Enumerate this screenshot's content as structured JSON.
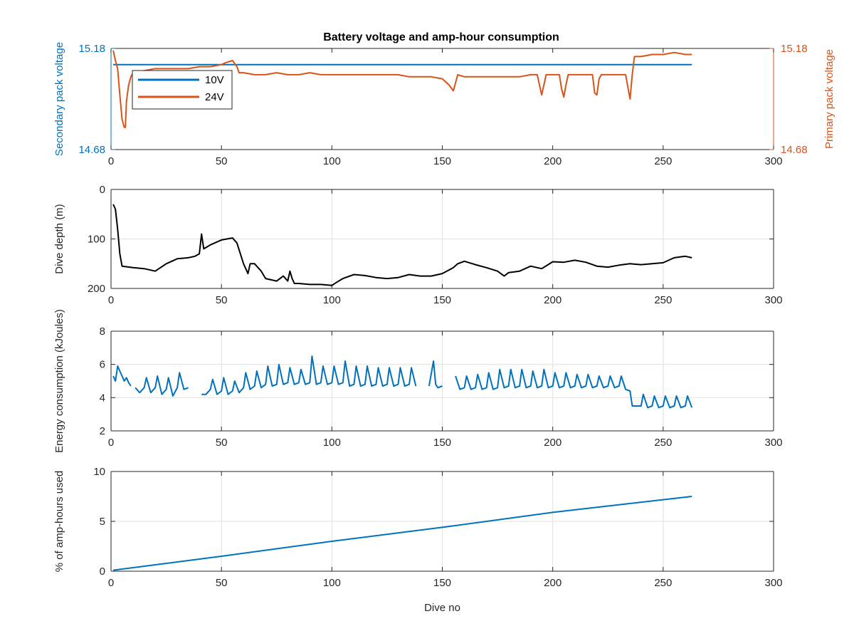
{
  "title": "Battery voltage and amp-hour consumption",
  "colors": {
    "blue": "#0072BD",
    "orange": "#D95319",
    "black": "#000000",
    "grid": "#e0e0e0",
    "axis": "#262626"
  },
  "chart_data": [
    {
      "type": "line",
      "title": "Battery voltage and amp-hour consumption",
      "xlabel": "",
      "ylabel_left": "Secondary pack voltage",
      "ylabel_right": "Primary pack voltage",
      "xlim": [
        0,
        300
      ],
      "ylim": [
        14.68,
        15.18
      ],
      "xticks": [
        "0",
        "50",
        "100",
        "150",
        "200",
        "250",
        "300"
      ],
      "yticks_left": [
        "14.68",
        "15.18"
      ],
      "yticks_right": [
        "14.68",
        "15.18"
      ],
      "legend": {
        "position": "top-left",
        "entries": [
          "10V",
          "24V"
        ]
      },
      "grid": false,
      "series": [
        {
          "name": "10V",
          "axis": "left",
          "x": [
            1,
            263
          ],
          "y": [
            15.1,
            15.1
          ]
        },
        {
          "name": "24V",
          "axis": "right",
          "x": [
            1,
            2,
            3,
            4,
            5,
            6,
            6.5,
            7,
            8,
            9,
            10,
            15,
            20,
            25,
            30,
            35,
            40,
            45,
            50,
            52,
            55,
            57,
            58,
            60,
            65,
            70,
            75,
            80,
            85,
            90,
            95,
            100,
            105,
            110,
            115,
            120,
            125,
            130,
            135,
            140,
            145,
            150,
            153,
            155,
            157,
            160,
            165,
            170,
            175,
            180,
            185,
            190,
            193,
            194,
            195,
            196,
            197,
            200,
            203,
            204,
            205,
            206,
            207,
            210,
            215,
            218,
            219,
            220,
            221,
            222,
            225,
            230,
            233,
            234,
            235,
            236,
            237,
            240,
            245,
            250,
            255,
            260,
            263
          ],
          "y": [
            15.17,
            15.12,
            15.08,
            14.95,
            14.83,
            14.79,
            14.79,
            14.92,
            15.0,
            15.04,
            15.06,
            15.07,
            15.08,
            15.08,
            15.08,
            15.08,
            15.09,
            15.09,
            15.1,
            15.11,
            15.12,
            15.09,
            15.06,
            15.06,
            15.05,
            15.05,
            15.06,
            15.05,
            15.05,
            15.06,
            15.05,
            15.05,
            15.05,
            15.05,
            15.05,
            15.05,
            15.05,
            15.05,
            15.04,
            15.04,
            15.04,
            15.03,
            15.0,
            14.97,
            15.05,
            15.04,
            15.04,
            15.04,
            15.04,
            15.04,
            15.04,
            15.05,
            15.05,
            15.0,
            14.95,
            15.0,
            15.05,
            15.05,
            15.05,
            14.98,
            14.94,
            15.0,
            15.05,
            15.05,
            15.05,
            15.05,
            14.96,
            14.95,
            15.03,
            15.05,
            15.05,
            15.05,
            15.05,
            14.99,
            14.93,
            15.05,
            15.14,
            15.14,
            15.15,
            15.15,
            15.16,
            15.15,
            15.15
          ]
        }
      ]
    },
    {
      "type": "line",
      "xlabel": "",
      "ylabel": "Dive depth (m)",
      "xlim": [
        0,
        300
      ],
      "ylim": [
        0,
        200
      ],
      "y_reversed": true,
      "xticks": [
        "0",
        "50",
        "100",
        "150",
        "200",
        "250",
        "300"
      ],
      "yticks": [
        "0",
        "100",
        "200"
      ],
      "grid": true,
      "series": [
        {
          "name": "",
          "x": [
            1,
            2,
            3,
            4,
            5,
            10,
            15,
            20,
            25,
            30,
            35,
            38,
            40,
            41,
            42,
            45,
            50,
            55,
            57,
            60,
            62,
            63,
            65,
            68,
            70,
            75,
            78,
            80,
            81,
            82,
            83,
            85,
            90,
            95,
            100,
            102,
            105,
            110,
            115,
            120,
            125,
            130,
            135,
            140,
            145,
            150,
            155,
            157,
            160,
            165,
            170,
            175,
            178,
            180,
            185,
            190,
            195,
            200,
            205,
            210,
            215,
            220,
            225,
            230,
            235,
            240,
            245,
            250,
            255,
            260,
            263
          ],
          "y": [
            30,
            40,
            80,
            130,
            155,
            158,
            160,
            165,
            150,
            140,
            138,
            135,
            130,
            90,
            120,
            112,
            102,
            98,
            108,
            150,
            170,
            150,
            150,
            165,
            180,
            185,
            175,
            185,
            165,
            180,
            190,
            190,
            192,
            192,
            194,
            188,
            180,
            172,
            174,
            178,
            180,
            178,
            172,
            175,
            175,
            170,
            158,
            150,
            145,
            152,
            158,
            165,
            175,
            168,
            165,
            155,
            160,
            146,
            147,
            143,
            147,
            155,
            157,
            153,
            150,
            152,
            150,
            148,
            138,
            135,
            138
          ]
        }
      ]
    },
    {
      "type": "line",
      "xlabel": "",
      "ylabel": "Energy consumption (kJoules)",
      "xlim": [
        0,
        300
      ],
      "ylim": [
        2,
        8
      ],
      "xticks": [
        "0",
        "50",
        "100",
        "150",
        "200",
        "250",
        "300"
      ],
      "yticks": [
        "2",
        "4",
        "6",
        "8"
      ],
      "grid": true,
      "series": [
        {
          "name": "",
          "segments": [
            {
              "x": [
                1,
                2,
                3,
                4,
                5,
                6,
                7,
                8,
                9
              ],
              "y": [
                5.3,
                5.0,
                5.9,
                5.6,
                5.3,
                5.0,
                5.2,
                4.9,
                4.7
              ]
            },
            {
              "x": [
                11,
                13,
                15,
                16,
                18,
                20,
                21,
                23,
                25,
                26,
                28,
                30,
                31,
                33,
                35
              ],
              "y": [
                4.6,
                4.3,
                4.6,
                5.2,
                4.3,
                4.6,
                5.3,
                4.2,
                4.5,
                5.2,
                4.1,
                4.6,
                5.5,
                4.5,
                4.6
              ]
            },
            {
              "x": [
                41,
                43,
                45,
                46,
                48,
                50,
                51,
                53,
                55,
                56,
                58,
                60,
                61,
                63,
                65,
                66,
                68,
                70,
                71,
                73,
                75,
                76,
                78,
                80,
                81,
                83,
                85,
                86,
                88,
                90,
                91,
                93,
                95,
                96,
                98,
                100,
                101,
                103,
                105,
                106,
                108,
                110,
                111,
                113,
                115,
                116,
                118,
                120,
                121,
                123,
                125,
                126,
                128,
                130,
                131,
                133,
                135,
                136,
                138
              ],
              "y": [
                4.2,
                4.2,
                4.5,
                5.1,
                4.2,
                4.4,
                5.2,
                4.2,
                4.4,
                5.0,
                4.3,
                4.6,
                5.5,
                4.5,
                4.7,
                5.6,
                4.6,
                4.8,
                5.9,
                4.7,
                4.8,
                6.0,
                4.8,
                4.9,
                5.8,
                4.8,
                4.9,
                5.7,
                4.8,
                4.9,
                6.5,
                4.8,
                4.9,
                5.9,
                4.8,
                4.9,
                5.9,
                4.8,
                4.9,
                6.2,
                4.7,
                4.8,
                5.9,
                4.7,
                4.8,
                5.9,
                4.7,
                4.8,
                5.8,
                4.7,
                4.8,
                5.8,
                4.7,
                4.8,
                5.8,
                4.7,
                4.8,
                5.8,
                4.7
              ]
            },
            {
              "x": [
                144,
                146,
                147,
                148,
                150
              ],
              "y": [
                4.7,
                6.2,
                4.8,
                4.6,
                4.7
              ]
            },
            {
              "x": [
                156,
                158,
                160,
                161,
                163,
                165,
                166,
                168,
                170,
                171,
                173,
                175,
                176,
                178,
                180,
                181,
                183,
                185,
                186,
                188,
                190,
                191,
                193,
                195,
                196,
                198,
                200,
                201,
                203,
                205,
                206,
                208,
                210,
                211,
                213,
                215,
                216,
                218,
                220,
                221,
                223,
                225,
                226,
                228,
                230,
                231,
                233,
                235,
                236,
                238,
                240,
                241,
                243,
                245,
                246,
                248,
                250,
                251,
                253,
                255,
                256,
                258,
                260,
                261,
                263
              ],
              "y": [
                5.3,
                4.5,
                4.6,
                5.3,
                4.5,
                4.6,
                5.4,
                4.5,
                4.6,
                5.5,
                4.5,
                4.6,
                5.7,
                4.6,
                4.7,
                5.7,
                4.6,
                4.7,
                5.7,
                4.6,
                4.7,
                5.6,
                4.6,
                4.7,
                5.7,
                4.6,
                4.7,
                5.5,
                4.6,
                4.7,
                5.5,
                4.6,
                4.7,
                5.4,
                4.6,
                4.7,
                5.4,
                4.6,
                4.7,
                5.3,
                4.6,
                4.7,
                5.3,
                4.6,
                4.7,
                5.3,
                4.5,
                4.4,
                3.5,
                3.5,
                3.5,
                4.2,
                3.4,
                3.5,
                4.1,
                3.4,
                3.5,
                4.1,
                3.4,
                3.5,
                4.1,
                3.4,
                3.5,
                4.1,
                3.4
              ]
            }
          ]
        }
      ]
    },
    {
      "type": "line",
      "xlabel": "Dive no",
      "ylabel": "% of amp-hours used",
      "xlim": [
        0,
        300
      ],
      "ylim": [
        0,
        10
      ],
      "xticks": [
        "0",
        "50",
        "100",
        "150",
        "200",
        "250",
        "300"
      ],
      "yticks": [
        "0",
        "5",
        "10"
      ],
      "grid": true,
      "series": [
        {
          "name": "",
          "x": [
            1,
            50,
            100,
            150,
            200,
            263
          ],
          "y": [
            0.1,
            1.5,
            3.0,
            4.4,
            5.9,
            7.5
          ]
        }
      ]
    }
  ]
}
